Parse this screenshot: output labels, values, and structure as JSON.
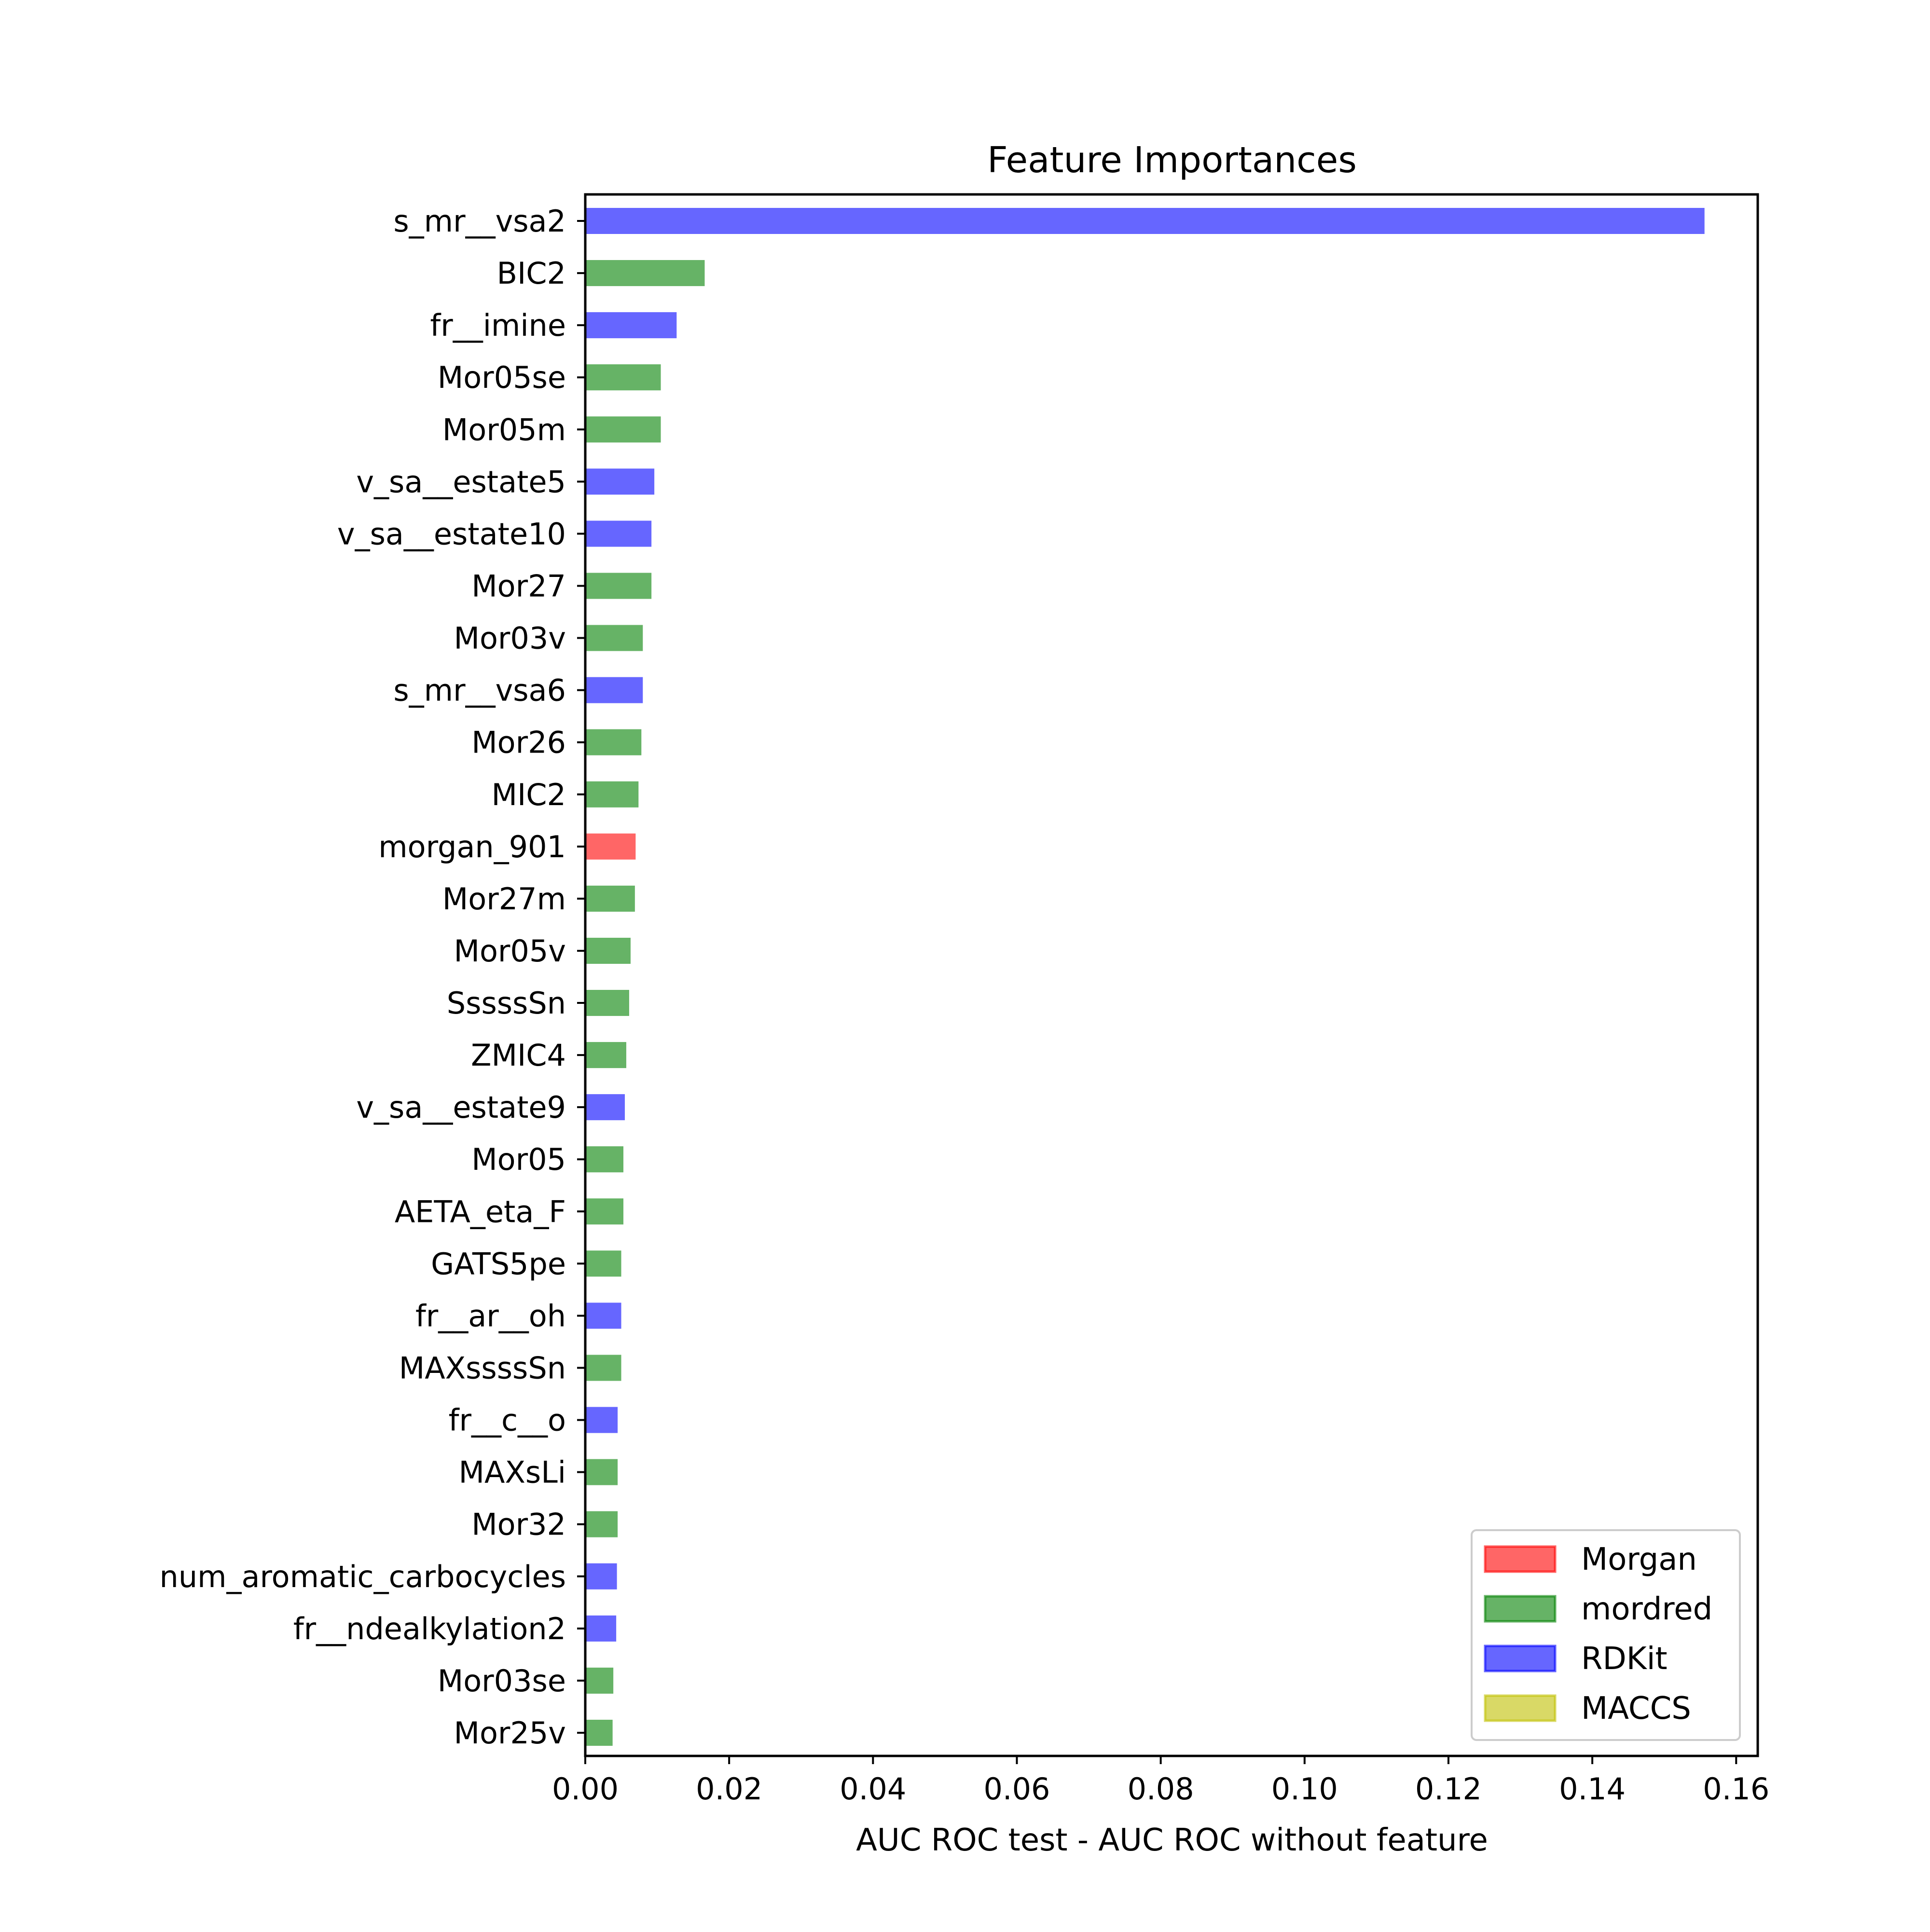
{
  "chart_data": {
    "type": "bar",
    "orientation": "horizontal",
    "title": "Feature Importances",
    "xlabel": "AUC ROC test - AUC ROC without feature",
    "ylabel": "",
    "xlim": [
      0.0,
      0.163
    ],
    "xticks": [
      0.0,
      0.02,
      0.04,
      0.06,
      0.08,
      0.1,
      0.12,
      0.14,
      0.16
    ],
    "xtick_labels": [
      "0.00",
      "0.02",
      "0.04",
      "0.06",
      "0.08",
      "0.10",
      "0.12",
      "0.14",
      "0.16"
    ],
    "grid": false,
    "legend_position": "lower-right",
    "groups": [
      {
        "name": "Morgan",
        "color": "#ff0000"
      },
      {
        "name": "mordred",
        "color": "#008000"
      },
      {
        "name": "RDKit",
        "color": "#0000ff"
      },
      {
        "name": "MACCS",
        "color": "#bfbf00"
      }
    ],
    "bars": [
      {
        "label": "s_mr__vsa2",
        "value": 0.1556,
        "group": "RDKit"
      },
      {
        "label": "BIC2",
        "value": 0.0166,
        "group": "mordred"
      },
      {
        "label": "fr__imine",
        "value": 0.0127,
        "group": "RDKit"
      },
      {
        "label": "Mor05se",
        "value": 0.0105,
        "group": "mordred"
      },
      {
        "label": "Mor05m",
        "value": 0.0105,
        "group": "mordred"
      },
      {
        "label": "v_sa__estate5",
        "value": 0.0096,
        "group": "RDKit"
      },
      {
        "label": "v_sa__estate10",
        "value": 0.0092,
        "group": "RDKit"
      },
      {
        "label": "Mor27",
        "value": 0.0092,
        "group": "mordred"
      },
      {
        "label": "Mor03v",
        "value": 0.008,
        "group": "mordred"
      },
      {
        "label": "s_mr__vsa6",
        "value": 0.008,
        "group": "RDKit"
      },
      {
        "label": "Mor26",
        "value": 0.0078,
        "group": "mordred"
      },
      {
        "label": "MIC2",
        "value": 0.0074,
        "group": "mordred"
      },
      {
        "label": "morgan_901",
        "value": 0.007,
        "group": "Morgan"
      },
      {
        "label": "Mor27m",
        "value": 0.0069,
        "group": "mordred"
      },
      {
        "label": "Mor05v",
        "value": 0.0063,
        "group": "mordred"
      },
      {
        "label": "SssssSn",
        "value": 0.0061,
        "group": "mordred"
      },
      {
        "label": "ZMIC4",
        "value": 0.0057,
        "group": "mordred"
      },
      {
        "label": "v_sa__estate9",
        "value": 0.0055,
        "group": "RDKit"
      },
      {
        "label": "Mor05",
        "value": 0.0053,
        "group": "mordred"
      },
      {
        "label": "AETA_eta_F",
        "value": 0.0053,
        "group": "mordred"
      },
      {
        "label": "GATS5pe",
        "value": 0.005,
        "group": "mordred"
      },
      {
        "label": "fr__ar__oh",
        "value": 0.005,
        "group": "RDKit"
      },
      {
        "label": "MAXssssSn",
        "value": 0.005,
        "group": "mordred"
      },
      {
        "label": "fr__c__o",
        "value": 0.0045,
        "group": "RDKit"
      },
      {
        "label": "MAXsLi",
        "value": 0.0045,
        "group": "mordred"
      },
      {
        "label": "Mor32",
        "value": 0.0045,
        "group": "mordred"
      },
      {
        "label": "num_aromatic_carbocycles",
        "value": 0.0044,
        "group": "RDKit"
      },
      {
        "label": "fr__ndealkylation2",
        "value": 0.0043,
        "group": "RDKit"
      },
      {
        "label": "Mor03se",
        "value": 0.0039,
        "group": "mordred"
      },
      {
        "label": "Mor25v",
        "value": 0.0038,
        "group": "mordred"
      }
    ]
  }
}
